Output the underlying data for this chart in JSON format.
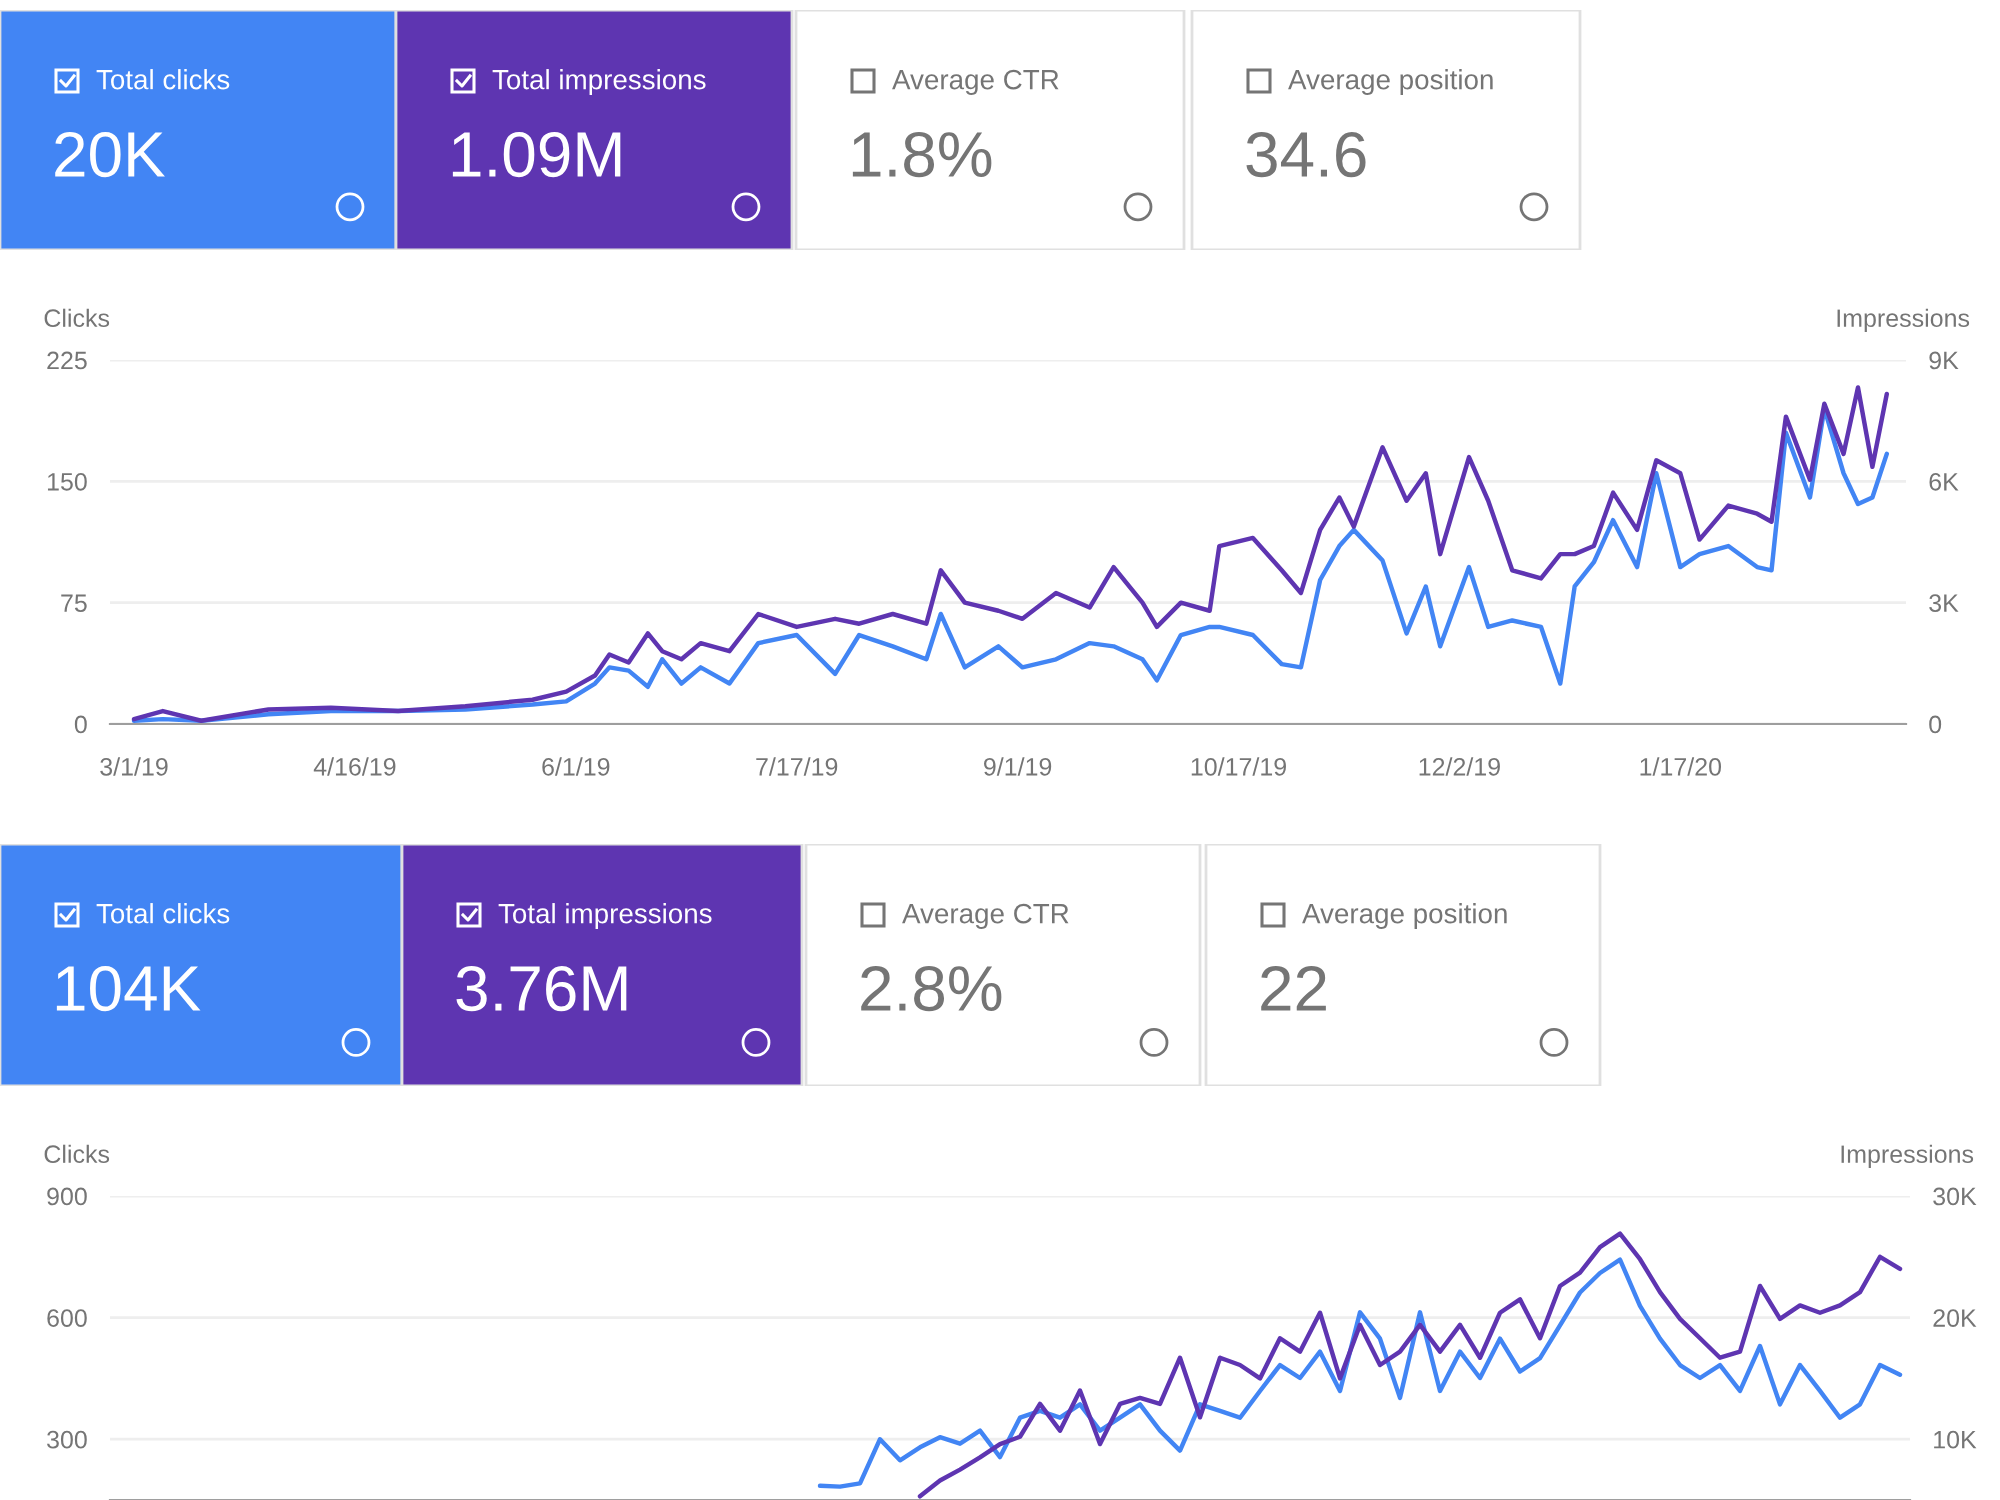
{
  "chart_data": [
    {
      "type": "other",
      "annotations": [
        "Total clicks",
        "20K",
        "Total impressions",
        "1.09M",
        "Average CTR",
        "1.8%",
        "Average position",
        "34.6"
      ],
      "colors": [
        "#4285f4",
        "#5e35b1",
        "#ffffff",
        "#ffffff"
      ]
    },
    {
      "type": "line",
      "ylabel": "Clicks",
      "y2label": "Impressions",
      "grid": "y",
      "x": [
        "2019-03-01",
        "2019-03-07",
        "2019-03-15",
        "2019-03-29",
        "2019-04-11",
        "2019-04-25",
        "2019-05-09",
        "2019-05-23",
        "2019-05-30",
        "2019-06-05",
        "2019-06-08",
        "2019-06-12",
        "2019-06-16",
        "2019-06-19",
        "2019-06-23",
        "2019-06-27",
        "2019-07-03",
        "2019-07-09",
        "2019-07-17",
        "2019-07-25",
        "2019-07-30",
        "2019-08-06",
        "2019-08-13",
        "2019-08-16",
        "2019-08-21",
        "2019-08-28",
        "2019-09-02",
        "2019-09-09",
        "2019-09-16",
        "2019-09-21",
        "2019-09-27",
        "2019-09-30",
        "2019-10-05",
        "2019-10-11",
        "2019-10-13",
        "2019-10-20",
        "2019-10-26",
        "2019-10-30",
        "2019-11-03",
        "2019-11-07",
        "2019-11-10",
        "2019-11-16",
        "2019-11-21",
        "2019-11-25",
        "2019-11-28",
        "2019-12-04",
        "2019-12-08",
        "2019-12-13",
        "2019-12-19",
        "2019-12-23",
        "2019-12-26",
        "2019-12-30",
        "2020-01-03",
        "2020-01-08",
        "2020-01-12",
        "2020-01-17",
        "2020-01-21",
        "2020-01-27",
        "2020-02-02",
        "2020-02-05",
        "2020-02-08",
        "2020-02-13",
        "2020-02-16",
        "2020-02-20",
        "2020-02-23",
        "2020-02-26",
        "2020-02-29"
      ],
      "xlim": [
        "2019-02-24",
        "2020-03-04"
      ],
      "xticks": [
        {
          "value": "2019-03-01",
          "label": "3/1/19"
        },
        {
          "value": "2019-04-16",
          "label": "4/16/19"
        },
        {
          "value": "2019-06-01",
          "label": "6/1/19"
        },
        {
          "value": "2019-07-17",
          "label": "7/17/19"
        },
        {
          "value": "2019-09-01",
          "label": "9/1/19"
        },
        {
          "value": "2019-10-17",
          "label": "10/17/19"
        },
        {
          "value": "2019-12-02",
          "label": "12/2/19"
        },
        {
          "value": "2020-01-17",
          "label": "1/17/20"
        }
      ],
      "ylim": [
        0,
        225
      ],
      "yticks": [
        0,
        75,
        150,
        225
      ],
      "y2lim": [
        0,
        9000
      ],
      "y2ticks": [
        0,
        {
          "value": 3000,
          "label": "3K"
        },
        {
          "value": 6000,
          "label": "6K"
        },
        {
          "value": 9000,
          "label": "9K"
        }
      ],
      "series": [
        {
          "color": "#5e35b1",
          "axis": "y2",
          "values": [
            120,
            320,
            80,
            360,
            400,
            320,
            440,
            600,
            800,
            1200,
            1720,
            1520,
            2240,
            1800,
            1600,
            2000,
            1800,
            2720,
            2400,
            2600,
            2480,
            2720,
            2480,
            3800,
            3000,
            2800,
            2600,
            3240,
            2880,
            3880,
            3000,
            2400,
            3000,
            2800,
            4400,
            4600,
            3800,
            3240,
            4800,
            5600,
            4880,
            6840,
            5520,
            6200,
            4200,
            6600,
            5520,
            3800,
            3600,
            4200,
            4200,
            4400,
            5720,
            4800,
            6520,
            6200,
            4560,
            5400,
            5200,
            5000,
            7600,
            6040,
            7920,
            6680,
            8320,
            6360,
            8160
          ]
        },
        {
          "color": "#4285f4",
          "values": [
            2,
            3,
            2,
            6,
            8,
            8,
            9,
            12,
            14,
            25,
            35,
            33,
            23,
            40,
            25,
            35,
            25,
            50,
            55,
            31,
            55,
            48,
            40,
            68,
            35,
            48,
            35,
            40,
            50,
            48,
            40,
            27,
            55,
            60,
            60,
            55,
            37,
            35,
            89,
            110,
            120,
            101,
            56,
            85,
            48,
            97,
            60,
            64,
            60,
            25,
            85,
            100,
            126,
            97,
            155,
            97,
            105,
            110,
            97,
            95,
            180,
            140,
            195,
            155,
            136,
            140,
            167
          ]
        }
      ]
    },
    {
      "type": "other",
      "annotations": [
        "Total clicks",
        "104K",
        "Total impressions",
        "3.76M",
        "Average CTR",
        "2.8%",
        "Average position",
        "22"
      ],
      "colors": [
        "#4285f4",
        "#5e35b1",
        "#ffffff",
        "#ffffff"
      ]
    },
    {
      "type": "line",
      "ylabel": "Clicks",
      "y2label": "Impressions",
      "grid": "y",
      "tick_labels": "y",
      "categories": [
        null,
        null,
        null,
        null,
        null,
        null,
        null,
        null,
        null,
        null,
        null,
        null,
        null,
        null,
        null,
        null,
        null,
        null,
        null,
        null,
        null,
        null,
        null,
        null,
        null,
        null,
        null,
        null,
        null,
        null,
        null,
        null,
        null,
        null,
        null,
        null,
        null,
        null,
        null,
        null,
        null,
        null,
        null,
        null,
        null,
        null,
        null,
        null,
        null,
        null,
        null,
        null,
        null,
        null,
        null,
        null,
        null,
        null,
        null,
        null,
        null,
        null,
        null,
        null,
        null,
        null,
        null,
        null,
        null,
        null,
        null,
        null,
        null,
        null,
        null,
        null,
        null,
        null,
        null,
        null,
        null,
        null,
        null,
        null,
        null,
        null,
        null,
        null,
        null,
        null
      ],
      "ylim": [
        150,
        900
      ],
      "yticks": [
        300,
        600,
        900
      ],
      "y2lim": [
        5000,
        30000
      ],
      "y2ticks": [
        {
          "value": 10000,
          "label": "10K"
        },
        {
          "value": 20000,
          "label": "20K"
        },
        {
          "value": 30000,
          "label": "30K"
        }
      ],
      "series": [
        {
          "color": "#5e35b1",
          "axis": "y2",
          "values": [
            null,
            null,
            null,
            null,
            null,
            null,
            null,
            null,
            null,
            null,
            null,
            null,
            null,
            null,
            null,
            null,
            null,
            null,
            null,
            null,
            null,
            null,
            null,
            null,
            null,
            null,
            null,
            null,
            null,
            null,
            null,
            null,
            null,
            null,
            null,
            null,
            null,
            null,
            null,
            null,
            5300,
            6600,
            7500,
            8500,
            9600,
            10200,
            12900,
            10700,
            14000,
            9600,
            12900,
            13400,
            12900,
            16700,
            11800,
            16700,
            16100,
            15000,
            18300,
            17200,
            20400,
            15000,
            19400,
            16100,
            17200,
            19400,
            17200,
            19400,
            16700,
            20400,
            21500,
            18300,
            22600,
            23700,
            25800,
            26900,
            24800,
            22100,
            19900,
            18300,
            16700,
            17200,
            22600,
            19900,
            21000,
            20400,
            21000,
            22100,
            25000,
            24000
          ]
        },
        {
          "color": "#4285f4",
          "values": [
            null,
            null,
            null,
            null,
            null,
            null,
            null,
            null,
            null,
            null,
            null,
            null,
            null,
            null,
            null,
            null,
            null,
            null,
            null,
            null,
            null,
            null,
            null,
            null,
            null,
            null,
            null,
            null,
            null,
            null,
            null,
            null,
            null,
            null,
            null,
            185,
            183,
            191,
            300,
            248,
            280,
            305,
            289,
            321,
            256,
            353,
            370,
            353,
            386,
            321,
            353,
            386,
            321,
            272,
            386,
            370,
            353,
            419,
            483,
            451,
            516,
            419,
            613,
            548,
            402,
            613,
            419,
            516,
            451,
            548,
            467,
            500,
            581,
            662,
            710,
            743,
            629,
            548,
            483,
            451,
            483,
            419,
            530,
            386,
            483,
            419,
            353,
            386,
            483,
            459
          ]
        }
      ]
    }
  ]
}
